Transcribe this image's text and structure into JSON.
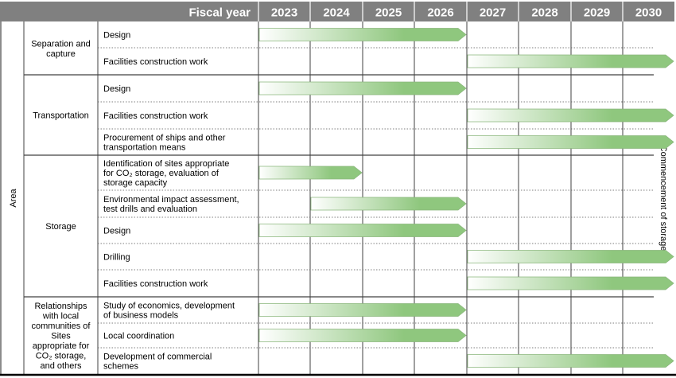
{
  "header": {
    "fiscal_year_label": "Fiscal year",
    "years": [
      "2023",
      "2024",
      "2025",
      "2026",
      "2027",
      "2028",
      "2029",
      "2030"
    ]
  },
  "axis_label": "Area",
  "side_label": "Commencement of storage",
  "colors": {
    "header_bg": "#808080",
    "bar_fill_start": "#ffffff",
    "bar_fill_end": "#8fc77e",
    "bar_stroke": "#8ab67c",
    "grid_line": "#404040",
    "dotted_line": "#555555"
  },
  "areas": [
    {
      "name_lines": [
        "Separation and",
        "capture"
      ],
      "tasks": [
        {
          "label_lines": [
            "Design"
          ],
          "start": "2023",
          "end": "2026"
        },
        {
          "label_lines": [
            "Facilities construction work"
          ],
          "start": "2027",
          "end": "2030"
        }
      ]
    },
    {
      "name_lines": [
        "Transportation"
      ],
      "tasks": [
        {
          "label_lines": [
            "Design"
          ],
          "start": "2023",
          "end": "2026"
        },
        {
          "label_lines": [
            "Facilities construction work"
          ],
          "start": "2027",
          "end": "2030"
        },
        {
          "label_lines": [
            "Procurement of ships and other",
            "transportation means"
          ],
          "start": "2027",
          "end": "2030"
        }
      ]
    },
    {
      "name_lines": [
        "Storage"
      ],
      "tasks": [
        {
          "label_lines": [
            "Identification of sites appropriate",
            "for CO₂ storage, evaluation of",
            "storage capacity"
          ],
          "start": "2023",
          "end": "2024"
        },
        {
          "label_lines": [
            "Environmental impact assessment,",
            "test drills and evaluation"
          ],
          "start": "2024",
          "end": "2026"
        },
        {
          "label_lines": [
            "Design"
          ],
          "start": "2023",
          "end": "2026"
        },
        {
          "label_lines": [
            "Drilling"
          ],
          "start": "2027",
          "end": "2030"
        },
        {
          "label_lines": [
            "Facilities construction work"
          ],
          "start": "2027",
          "end": "2030"
        }
      ]
    },
    {
      "name_lines": [
        "Relationships",
        "with local",
        "communities of",
        "Sites",
        "appropriate for",
        "CO₂ storage,",
        "and others"
      ],
      "tasks": [
        {
          "label_lines": [
            "Study of economics, development",
            "of business models"
          ],
          "start": "2023",
          "end": "2026"
        },
        {
          "label_lines": [
            "Local coordination"
          ],
          "start": "2023",
          "end": "2026"
        },
        {
          "label_lines": [
            "Development of commercial",
            "schemes"
          ],
          "start": "2027",
          "end": "2030"
        }
      ]
    }
  ]
}
